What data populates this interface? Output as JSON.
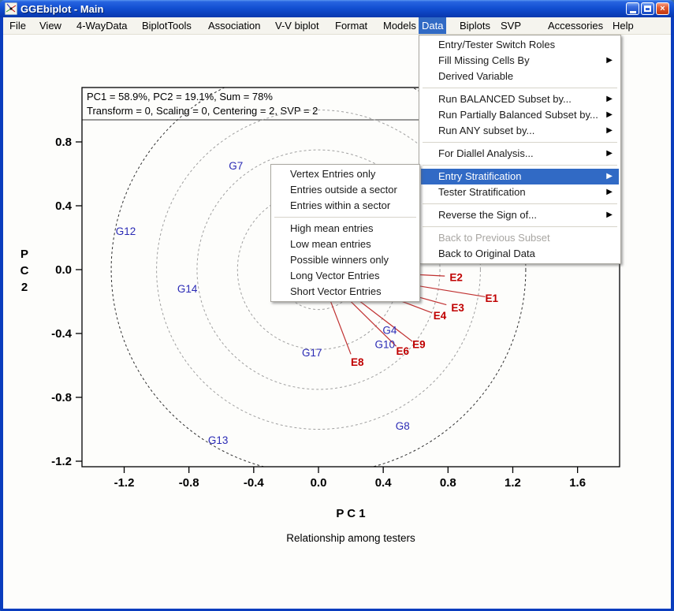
{
  "window": {
    "title": "GGEbiplot - Main",
    "buttons": {
      "minimize": "minimize",
      "maximize": "maximize",
      "close": "×"
    }
  },
  "menubar": {
    "items": [
      {
        "label": "File"
      },
      {
        "label": "View"
      },
      {
        "label": "4-WayData"
      },
      {
        "label": "BiplotTools"
      },
      {
        "label": "Association"
      },
      {
        "label": "V-V biplot"
      },
      {
        "label": "Format"
      },
      {
        "label": "Models"
      },
      {
        "label": "Data",
        "active": true
      },
      {
        "label": "Biplots"
      },
      {
        "label": "SVP"
      },
      {
        "label": "Accessories"
      },
      {
        "label": "Help"
      }
    ]
  },
  "data_menu": {
    "items": [
      {
        "type": "item",
        "label": "Entry/Tester Switch Roles"
      },
      {
        "type": "item",
        "label": "Fill Missing Cells By",
        "submenu": true
      },
      {
        "type": "item",
        "label": "Derived Variable"
      },
      {
        "type": "separator"
      },
      {
        "type": "item",
        "label": "Run BALANCED Subset by...",
        "submenu": true
      },
      {
        "type": "item",
        "label": "Run Partially Balanced Subset by...",
        "submenu": true
      },
      {
        "type": "item",
        "label": "Run ANY subset by...",
        "submenu": true
      },
      {
        "type": "separator"
      },
      {
        "type": "item",
        "label": "For Diallel Analysis...",
        "submenu": true
      },
      {
        "type": "separator"
      },
      {
        "type": "item",
        "label": "Entry Stratification",
        "submenu": true,
        "highlighted": true
      },
      {
        "type": "item",
        "label": "Tester Stratification",
        "submenu": true
      },
      {
        "type": "separator"
      },
      {
        "type": "item",
        "label": "Reverse the Sign of...",
        "submenu": true
      },
      {
        "type": "separator"
      },
      {
        "type": "item",
        "label": "Back to Previous Subset",
        "disabled": true
      },
      {
        "type": "item",
        "label": "Back to Original Data"
      }
    ]
  },
  "entry_submenu": {
    "items": [
      {
        "type": "item",
        "label": "Vertex Entries only"
      },
      {
        "type": "item",
        "label": "Entries outside a sector"
      },
      {
        "type": "item",
        "label": "Entries within a sector"
      },
      {
        "type": "separator"
      },
      {
        "type": "item",
        "label": "High mean entries"
      },
      {
        "type": "item",
        "label": "Low mean entries"
      },
      {
        "type": "item",
        "label": "Possible winners only"
      },
      {
        "type": "item",
        "label": "Long Vector Entries"
      },
      {
        "type": "item",
        "label": "Short Vector Entries"
      }
    ]
  },
  "chart_data": {
    "type": "scatter",
    "title_lines": [
      "PC1 = 58.9%, PC2 = 19.1%, Sum = 78%",
      "Transform = 0, Scaling = 0, Centering = 2, SVP = 2"
    ],
    "xlabel": "P C 1",
    "ylabel_chars": [
      "P",
      "C",
      "2"
    ],
    "caption": "Relationship among testers",
    "x_ticks": [
      "-1.2",
      "-0.8",
      "-0.4",
      "0.0",
      "0.4",
      "0.8",
      "1.2",
      "1.6"
    ],
    "y_ticks": [
      "0.8",
      "0.4",
      "0.0",
      "-0.4",
      "-0.8",
      "-1.2"
    ],
    "xlim": [
      -1.46,
      1.86
    ],
    "ylim": [
      -1.23,
      1.14
    ],
    "grid": false,
    "origin": [
      0,
      0
    ],
    "circles": {
      "gray_radii": [
        0.25,
        0.5,
        0.75,
        1.0
      ],
      "black_radius": 1.28
    },
    "entries": [
      {
        "label": "G7",
        "x": -0.51,
        "y": 0.65
      },
      {
        "label": "G12",
        "x": -1.19,
        "y": 0.24
      },
      {
        "label": "G14",
        "x": -0.81,
        "y": -0.12
      },
      {
        "label": "G17",
        "x": -0.04,
        "y": -0.52
      },
      {
        "label": "G13",
        "x": -0.62,
        "y": -1.07
      },
      {
        "label": "G8",
        "x": 0.52,
        "y": -0.98
      },
      {
        "label": "G4",
        "x": 0.44,
        "y": -0.38
      },
      {
        "label": "G10",
        "x": 0.41,
        "y": -0.47
      }
    ],
    "testers": [
      {
        "label": "E1",
        "x": 1.07,
        "y": -0.18,
        "vx": 1.03,
        "vy": -0.17
      },
      {
        "label": "E2",
        "x": 0.85,
        "y": -0.05,
        "vx": 0.78,
        "vy": -0.04
      },
      {
        "label": "E3",
        "x": 0.86,
        "y": -0.24,
        "vx": 0.79,
        "vy": -0.22
      },
      {
        "label": "E4",
        "x": 0.75,
        "y": -0.29,
        "vx": 0.7,
        "vy": -0.27
      },
      {
        "label": "E9",
        "x": 0.62,
        "y": -0.47,
        "vx": 0.58,
        "vy": -0.45
      },
      {
        "label": "E6",
        "x": 0.52,
        "y": -0.51,
        "vx": 0.48,
        "vy": -0.48
      },
      {
        "label": "E8",
        "x": 0.24,
        "y": -0.58,
        "vx": 0.2,
        "vy": -0.53
      }
    ],
    "colors": {
      "entry": "#2A2AB5",
      "tester": "#C00000",
      "vector": "#C03030",
      "circle_gray": "#A0A0A0",
      "circle_black": "#303030"
    }
  }
}
